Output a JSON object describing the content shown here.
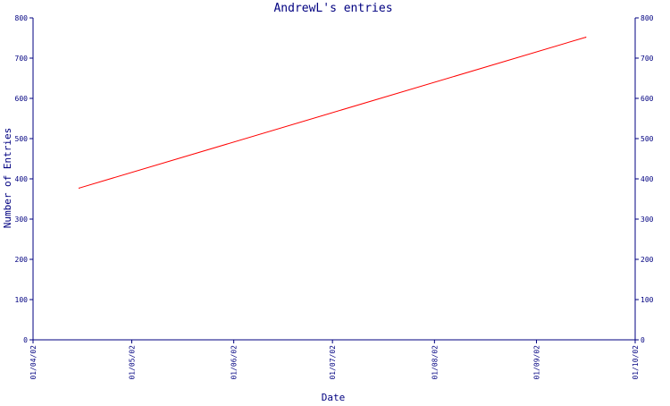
{
  "colors": {
    "axis": "#000080",
    "text": "#000080",
    "series": "#ff0000",
    "background": "#ffffff"
  },
  "chart_data": {
    "type": "line",
    "title": "AndrewL's entries",
    "xlabel": "Date",
    "ylabel": "Number of Entries",
    "x_tick_labels": [
      "01/04/02",
      "01/05/02",
      "01/06/02",
      "01/07/02",
      "01/08/02",
      "01/09/02",
      "01/10/02"
    ],
    "x_ticks": [
      "2002-04-01",
      "2002-05-01",
      "2002-06-01",
      "2002-07-01",
      "2002-08-01",
      "2002-09-01",
      "2002-10-01"
    ],
    "xlim": [
      "2002-04-01",
      "2002-10-01"
    ],
    "y_ticks": [
      0,
      100,
      200,
      300,
      400,
      500,
      600,
      700,
      800
    ],
    "ylim": [
      0,
      800
    ],
    "grid": false,
    "y_axis_both_sides": true,
    "series": [
      {
        "color": "#ff0000",
        "x": [
          "2002-04-15",
          "2002-09-16"
        ],
        "y": [
          377,
          752
        ]
      }
    ]
  }
}
